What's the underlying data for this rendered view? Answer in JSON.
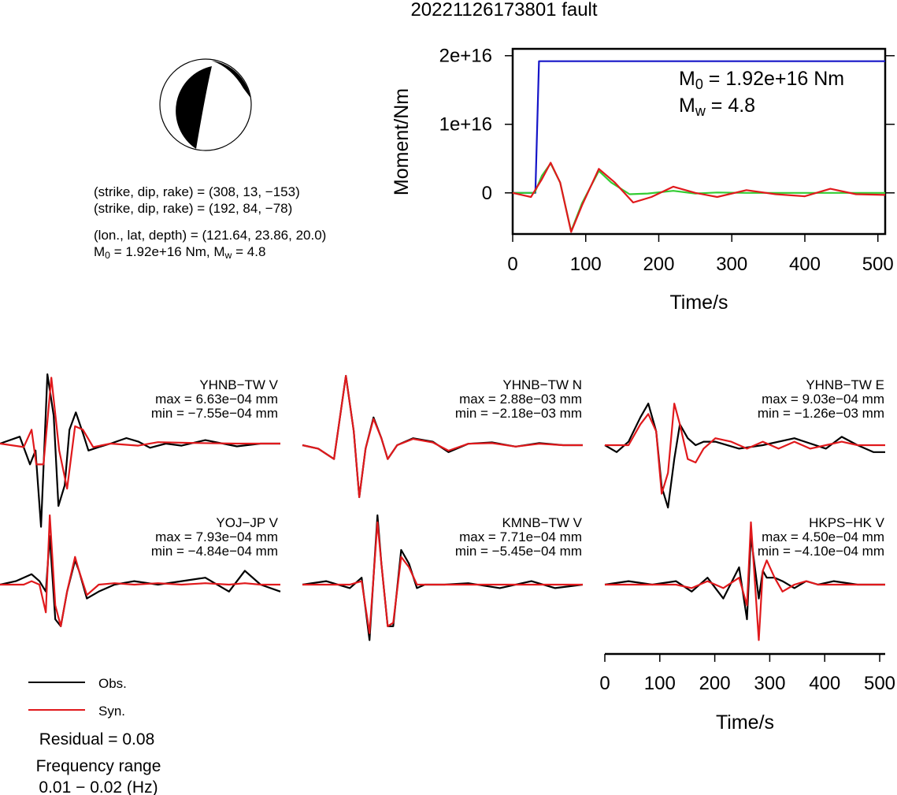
{
  "title": "20221126173801 fault",
  "focal_mechanism": {
    "line1": "(strike, dip, rake) = (308, 13, −153)",
    "line2": "(strike, dip, rake) = (192, 84, −78)",
    "line3": "(lon., lat, depth) = (121.64, 23.86, 20.0)",
    "m0_text": "= 1.92e+16 Nm, M",
    "mw_text": "= 4.8",
    "m_symbol": "M",
    "sub_0": "0",
    "sub_w": "w"
  },
  "legend": {
    "obs_label": "Obs.",
    "syn_label": "Syn.",
    "residual": "Residual = 0.08",
    "freq_label": "Frequency range",
    "freq_value": "0.01 − 0.02 (Hz)"
  },
  "colors": {
    "observed": "#000000",
    "synthetic": "#e0191c",
    "moment": "#1515c8",
    "stf": "#33cc33"
  },
  "chart_data": [
    {
      "type": "line",
      "title": "",
      "xlabel": "Time/s",
      "ylabel": "Moment/Nm",
      "xlim": [
        0,
        510
      ],
      "ylim": [
        -6000000000000000.0,
        2.1e+16
      ],
      "xticks": [
        0,
        100,
        200,
        300,
        400,
        500
      ],
      "yticks": [
        0,
        1e+16,
        2e+16
      ],
      "ytick_labels": [
        "0",
        "1e+16",
        "2e+16"
      ],
      "annotation_m0": "= 1.92e+16 Nm",
      "annotation_mw": "= 4.8",
      "series": [
        {
          "color": "#1515c8",
          "x": [
            0,
            31,
            36,
            510
          ],
          "y": [
            0,
            0,
            1.92e+16,
            1.92e+16
          ]
        },
        {
          "color": "#33cc33",
          "x": [
            0,
            30,
            40,
            52,
            65,
            80,
            95,
            118,
            135,
            160,
            185,
            220,
            250,
            280,
            320,
            360,
            400,
            440,
            480,
            510
          ],
          "y": [
            0,
            0,
            2500000000000000.0,
            4300000000000000.0,
            1500000000000000.0,
            -5600000000000000.0,
            -1500000000000000.0,
            3200000000000000.0,
            1500000000000000.0,
            -200000000000000.0,
            -100000000000000.0,
            300000000000000.0,
            -100000000000000.0,
            50000000000000.0,
            0,
            0,
            0,
            0,
            0,
            0
          ]
        },
        {
          "color": "#e0191c",
          "x": [
            0,
            25,
            40,
            52,
            65,
            80,
            95,
            118,
            140,
            165,
            190,
            220,
            250,
            280,
            320,
            360,
            400,
            435,
            470,
            510
          ],
          "y": [
            0,
            -600000000000000.0,
            2000000000000000.0,
            4400000000000000.0,
            1500000000000000.0,
            -5700000000000000.0,
            -1800000000000000.0,
            3500000000000000.0,
            1500000000000000.0,
            -1400000000000000.0,
            -600000000000000.0,
            900000000000000.0,
            0,
            -600000000000000.0,
            400000000000000.0,
            -200000000000000.0,
            -500000000000000.0,
            600000000000000.0,
            -200000000000000.0,
            -300000000000000.0
          ]
        }
      ]
    },
    {
      "type": "line",
      "title": "",
      "xlabel": "Time/s",
      "xlim": [
        0,
        510
      ],
      "xticks": [
        0,
        100,
        200,
        300,
        400,
        500
      ],
      "stations": [
        {
          "name": "YHNB−TW V",
          "max": "max = 6.63e−04 mm",
          "min": "min = −7.55e−04 mm",
          "obs": {
            "x": [
              0,
              25,
              38,
              45,
              52,
              60,
              68,
              74,
              82,
              88,
              96,
              105,
              112,
              125,
              140,
              160,
              175,
              190,
              210,
              230,
              260,
              300,
              330,
              355
            ],
            "y": [
              0,
              0.1,
              -0.3,
              -0.1,
              -1.2,
              1.0,
              0.4,
              -0.9,
              -0.6,
              0.2,
              0.45,
              0.15,
              -0.1,
              -0.05,
              0,
              0.08,
              0.03,
              -0.06,
              0,
              -0.03,
              0.05,
              -0.04,
              0,
              0
            ]
          },
          "syn": {
            "x": [
              0,
              30,
              40,
              46,
              55,
              65,
              75,
              85,
              95,
              105,
              118,
              140,
              175,
              200,
              240,
              300,
              355
            ],
            "y": [
              0,
              -0.05,
              0.2,
              -0.3,
              -0.3,
              0.95,
              -0.1,
              -0.65,
              0.25,
              0.2,
              -0.05,
              0,
              -0.03,
              0.02,
              0.01,
              0,
              0
            ]
          }
        },
        {
          "name": "YHNB−TW N",
          "max": "max = 2.88e−03 mm",
          "min": "min = −2.18e−03 mm",
          "obs": {
            "x": [
              0,
              20,
              40,
              55,
              65,
              72,
              80,
              90,
              100,
              108,
              120,
              140,
              165,
              185,
              210,
              240,
              270,
              300,
              330,
              355
            ],
            "y": [
              0,
              -0.05,
              -0.2,
              1.0,
              0.2,
              -0.75,
              -0.05,
              0.4,
              0.1,
              -0.2,
              0,
              0.1,
              0.05,
              -0.1,
              0.02,
              0.04,
              -0.02,
              0.03,
              0,
              0
            ]
          },
          "syn": {
            "x": [
              0,
              20,
              40,
              55,
              65,
              72,
              80,
              90,
              100,
              108,
              120,
              140,
              165,
              185,
              210,
              240,
              270,
              300,
              330,
              355
            ],
            "y": [
              0,
              -0.05,
              -0.2,
              1.0,
              0.2,
              -0.75,
              -0.05,
              0.38,
              0.1,
              -0.2,
              0,
              0.09,
              0.04,
              -0.08,
              0.02,
              0.03,
              -0.02,
              0.02,
              0,
              0
            ]
          }
        },
        {
          "name": "YHNB−TW E",
          "max": "max = 9.03e−04 mm",
          "min": "min = −1.26e−03 mm",
          "obs": {
            "x": [
              0,
              15,
              30,
              45,
              55,
              65,
              72,
              80,
              88,
              95,
              105,
              115,
              125,
              140,
              170,
              200,
              240,
              280,
              300,
              320,
              340,
              355
            ],
            "y": [
              0,
              -0.1,
              0.05,
              0.4,
              0.6,
              0.2,
              -0.6,
              -0.9,
              -0.2,
              0.3,
              0.1,
              0,
              0.05,
              0.05,
              -0.05,
              0,
              0.1,
              -0.05,
              0.12,
              0,
              -0.1,
              -0.1
            ]
          },
          "syn": {
            "x": [
              0,
              30,
              45,
              55,
              65,
              72,
              80,
              88,
              95,
              105,
              115,
              125,
              140,
              160,
              180,
              200,
              220,
              240,
              260,
              280,
              300,
              320,
              355
            ],
            "y": [
              0,
              0,
              0.3,
              0.45,
              0.2,
              -0.7,
              -0.4,
              0.6,
              0.3,
              -0.2,
              -0.25,
              -0.05,
              0.1,
              0.05,
              -0.05,
              0.05,
              -0.05,
              0.05,
              -0.05,
              0,
              0.05,
              0,
              0
            ]
          }
        },
        {
          "name": "YOJ−JP V",
          "max": "max = 7.93e−04 mm",
          "min": "min = −4.84e−04 mm",
          "obs": {
            "x": [
              0,
              20,
              40,
              50,
              58,
              63,
              70,
              77,
              85,
              95,
              100,
              110,
              125,
              145,
              170,
              200,
              230,
              260,
              290,
              310,
              330,
              355
            ],
            "y": [
              0,
              0.05,
              0.15,
              0.05,
              -0.1,
              0.7,
              -0.5,
              -0.6,
              -0.1,
              0.35,
              0.2,
              -0.2,
              -0.1,
              0,
              0.05,
              0,
              0.05,
              0.1,
              -0.1,
              0.2,
              0,
              -0.1
            ]
          },
          "syn": {
            "x": [
              0,
              30,
              40,
              50,
              58,
              63,
              70,
              77,
              85,
              95,
              100,
              110,
              125,
              145,
              170,
              200,
              230,
              260,
              290,
              310,
              330,
              355
            ],
            "y": [
              0,
              0,
              0.05,
              0,
              -0.4,
              1.0,
              -0.3,
              -0.6,
              -0.1,
              0.4,
              0.2,
              -0.15,
              0,
              0.02,
              0,
              0.02,
              0,
              0.02,
              0,
              0.02,
              0,
              0
            ]
          }
        },
        {
          "name": "KMNB−TW V",
          "max": "max = 7.71e−04 mm",
          "min": "min = −5.45e−04 mm",
          "obs": {
            "x": [
              0,
              30,
              60,
              75,
              85,
              95,
              100,
              108,
              115,
              125,
              135,
              145,
              155,
              165,
              180,
              210,
              250,
              290,
              320,
              355
            ],
            "y": [
              0,
              0.05,
              -0.05,
              0.1,
              -0.8,
              1.0,
              0.3,
              -0.6,
              -0.6,
              0.5,
              0.3,
              -0.05,
              0,
              0,
              0,
              0.02,
              -0.05,
              0.05,
              -0.05,
              0
            ]
          },
          "syn": {
            "x": [
              0,
              30,
              60,
              75,
              85,
              95,
              100,
              108,
              115,
              125,
              135,
              145,
              155,
              165,
              180,
              210,
              250,
              290,
              320,
              355
            ],
            "y": [
              0,
              0,
              0,
              0.05,
              -0.7,
              0.9,
              0.3,
              -0.6,
              -0.55,
              0.4,
              0.25,
              0,
              0,
              0,
              0,
              0,
              0,
              0,
              0,
              0
            ]
          }
        },
        {
          "name": "HKPS−HK V",
          "max": "max = 4.50e−04 mm",
          "min": "min = −4.10e−04 mm",
          "obs": {
            "x": [
              0,
              30,
              60,
              90,
              110,
              130,
              150,
              170,
              180,
              185,
              195,
              200,
              205,
              215,
              225,
              240,
              255,
              270,
              290,
              320,
              355
            ],
            "y": [
              0,
              0.05,
              0,
              0.05,
              -0.1,
              0.1,
              -0.2,
              0.25,
              -0.5,
              0.7,
              -0.2,
              0.2,
              0.1,
              0.1,
              0.05,
              -0.05,
              0.05,
              0,
              0.05,
              0,
              0
            ]
          },
          "syn": {
            "x": [
              0,
              30,
              60,
              90,
              110,
              130,
              150,
              170,
              180,
              185,
              195,
              200,
              205,
              215,
              225,
              240,
              255,
              270,
              290,
              320,
              355
            ],
            "y": [
              0,
              0,
              0,
              0,
              -0.05,
              0.05,
              -0.05,
              0.1,
              -0.3,
              0.9,
              -0.8,
              0.2,
              0.35,
              0.1,
              -0.1,
              0,
              0.05,
              0,
              0,
              0,
              0
            ]
          }
        }
      ]
    }
  ]
}
